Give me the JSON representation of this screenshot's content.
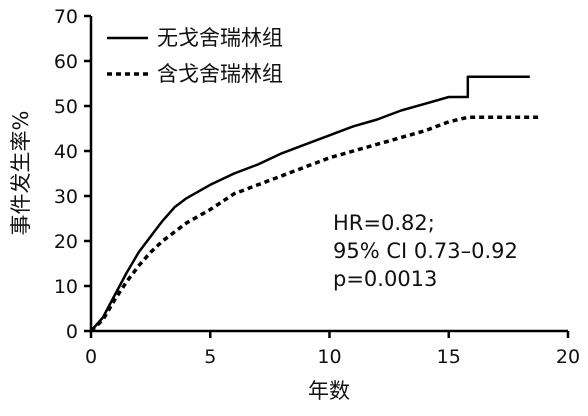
{
  "chart_data": {
    "type": "line",
    "title": "",
    "xlabel": "年数",
    "ylabel": "事件发生率%",
    "xlim": [
      0,
      20
    ],
    "ylim": [
      0,
      70
    ],
    "x_ticks": [
      "0",
      "5",
      "10",
      "15",
      "20"
    ],
    "y_ticks": [
      "0",
      "10",
      "20",
      "30",
      "40",
      "50",
      "60",
      "70"
    ],
    "grid": false,
    "legend_position": "top-left",
    "series": [
      {
        "name": "无戈舍瑞林组",
        "line_style": "solid",
        "color": "#000000",
        "x": [
          0,
          0.5,
          1,
          1.5,
          2,
          2.5,
          3,
          3.5,
          4,
          5,
          6,
          7,
          8,
          9,
          10,
          11,
          12,
          13,
          14,
          15,
          15.8,
          15.8,
          18.4
        ],
        "y": [
          0,
          3,
          8,
          13,
          17.5,
          21,
          24.5,
          27.5,
          29.5,
          32.5,
          35,
          37,
          39.5,
          41.5,
          43.5,
          45.5,
          47,
          49,
          50.5,
          52,
          52,
          56.5,
          56.5
        ]
      },
      {
        "name": "含戈舍瑞林组",
        "line_style": "dashed",
        "color": "#000000",
        "x": [
          0,
          0.5,
          1,
          1.5,
          2,
          2.5,
          3,
          3.5,
          4,
          5,
          6,
          7,
          8,
          9,
          10,
          11,
          12,
          13,
          14,
          15,
          15.8,
          18.8
        ],
        "y": [
          0,
          2.5,
          7,
          11,
          14.5,
          17.5,
          20,
          22,
          24,
          27,
          30.5,
          32.5,
          34.5,
          36.5,
          38.5,
          40,
          41.5,
          43,
          44.5,
          46.5,
          47.5,
          47.5
        ]
      }
    ],
    "annotations": [
      "HR=0.82;",
      "95% CI 0.73–0.92",
      "p=0.0013"
    ]
  }
}
